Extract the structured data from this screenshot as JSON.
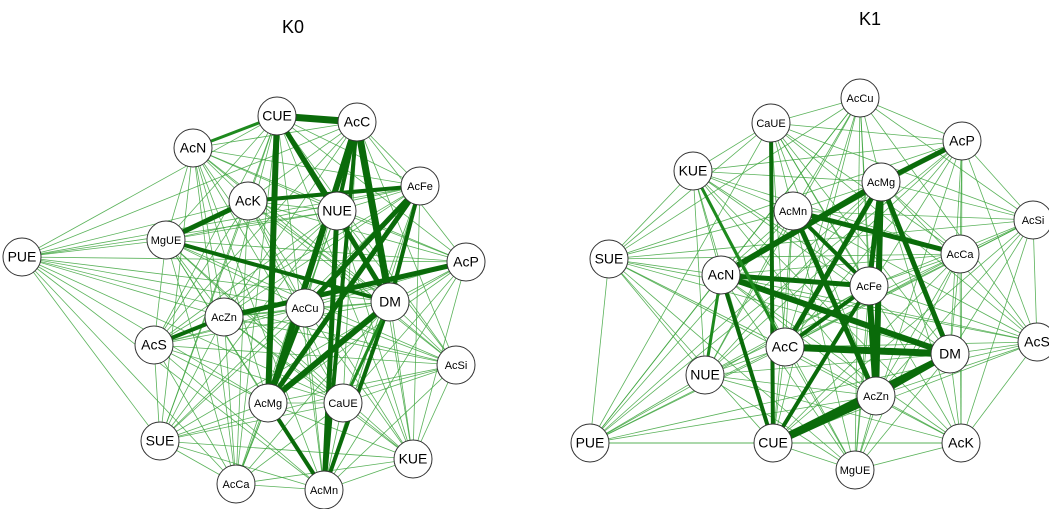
{
  "graphs": [
    {
      "title": "K0",
      "nodes": [
        "CUE",
        "AcC",
        "AcN",
        "AcFe",
        "AcK",
        "NUE",
        "MgUE",
        "PUE",
        "AcP",
        "AcZn",
        "AcCu",
        "DM",
        "AcS",
        "AcSi",
        "AcMg",
        "CaUE",
        "SUE",
        "KUE",
        "AcCa",
        "AcMn"
      ]
    },
    {
      "title": "K1",
      "nodes": [
        "AcCu",
        "CaUE",
        "AcP",
        "KUE",
        "AcMg",
        "AcMn",
        "AcSi",
        "SUE",
        "AcCa",
        "AcN",
        "AcFe",
        "AcS",
        "AcC",
        "DM",
        "NUE",
        "AcZn",
        "PUE",
        "CUE",
        "AcK",
        "MgUE"
      ]
    }
  ]
}
